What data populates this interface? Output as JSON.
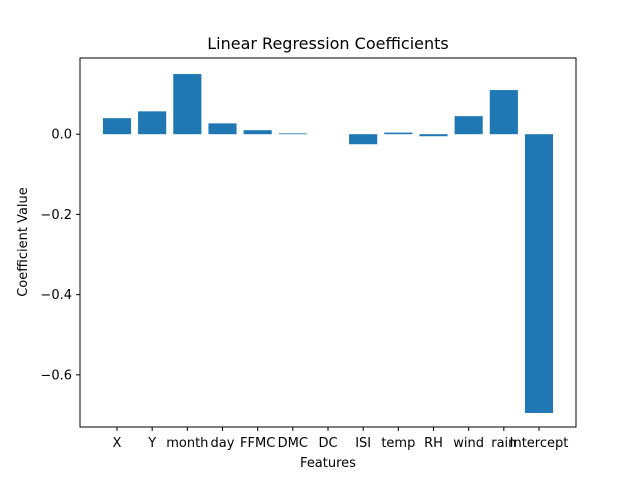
{
  "chart_data": {
    "type": "bar",
    "title": "Linear Regression Coefficients",
    "xlabel": "Features",
    "ylabel": "Coefficient Value",
    "categories": [
      "X",
      "Y",
      "month",
      "day",
      "FFMC",
      "DMC",
      "DC",
      "ISI",
      "temp",
      "RH",
      "wind",
      "rain",
      "Intercept"
    ],
    "values": [
      0.04,
      0.057,
      0.15,
      0.027,
      0.01,
      0.002,
      0.0,
      -0.025,
      0.004,
      -0.005,
      0.045,
      0.11,
      -0.695
    ],
    "ylim": [
      -0.73,
      0.19
    ],
    "yticks": [
      -0.6,
      -0.4,
      -0.2,
      0.0
    ],
    "ytick_labels": [
      "−0.6",
      "−0.4",
      "−0.2",
      "0.0"
    ],
    "bar_color": "#1f77b4",
    "grid": false,
    "legend": "none"
  }
}
